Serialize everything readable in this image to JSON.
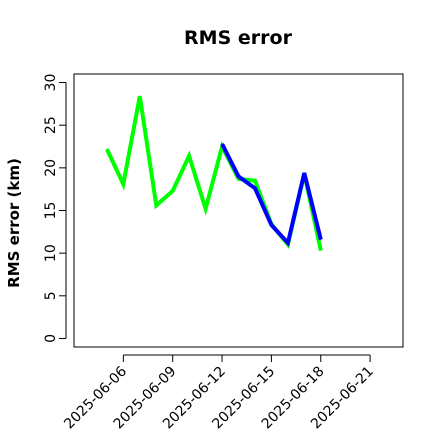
{
  "chart_data": {
    "type": "line",
    "title": "RMS error",
    "xlabel": "",
    "ylabel": "RMS error (km)",
    "xlim": [
      "2025-06-03",
      "2025-06-23"
    ],
    "ylim": [
      -1,
      31
    ],
    "y_ticks": [
      "0",
      "5",
      "10",
      "15",
      "20",
      "25",
      "30"
    ],
    "x_ticks": [
      {
        "date": "2025-06-06",
        "label": "2025-06-06",
        "color": "#000000"
      },
      {
        "date": "2025-06-09",
        "label": "2025-06-09",
        "color": "#000000"
      },
      {
        "date": "2025-06-12",
        "label": "2025-06-12",
        "color": "#228B22"
      },
      {
        "date": "2025-06-15",
        "label": "2025-06-15",
        "color": "#000000"
      },
      {
        "date": "2025-06-18",
        "label": "2025-06-18",
        "color": "#000000"
      },
      {
        "date": "2025-06-21",
        "label": "2025-06-21",
        "color": "#000000"
      }
    ],
    "grid": false,
    "legend": "none",
    "series": [
      {
        "color": "#00ff00",
        "points": [
          {
            "x": "2025-06-05",
            "y": 22.2
          },
          {
            "x": "2025-06-06",
            "y": 18.1
          },
          {
            "x": "2025-06-07",
            "y": 28.4
          },
          {
            "x": "2025-06-08",
            "y": 15.6
          },
          {
            "x": "2025-06-09",
            "y": 17.3
          },
          {
            "x": "2025-06-10",
            "y": 21.4
          },
          {
            "x": "2025-06-11",
            "y": 15.2
          },
          {
            "x": "2025-06-12",
            "y": 22.5
          },
          {
            "x": "2025-06-13",
            "y": 18.7
          },
          {
            "x": "2025-06-14",
            "y": 18.5
          },
          {
            "x": "2025-06-15",
            "y": 13.4
          },
          {
            "x": "2025-06-16",
            "y": 11.0
          },
          {
            "x": "2025-06-17",
            "y": 19.3
          },
          {
            "x": "2025-06-18",
            "y": 10.3
          }
        ]
      },
      {
        "color": "#0000ff",
        "points": [
          {
            "x": "2025-06-12",
            "y": 22.8
          },
          {
            "x": "2025-06-13",
            "y": 19.0
          },
          {
            "x": "2025-06-14",
            "y": 17.6
          },
          {
            "x": "2025-06-15",
            "y": 13.3
          },
          {
            "x": "2025-06-16",
            "y": 11.2
          },
          {
            "x": "2025-06-17",
            "y": 19.4
          },
          {
            "x": "2025-06-18",
            "y": 11.6
          }
        ]
      }
    ]
  }
}
